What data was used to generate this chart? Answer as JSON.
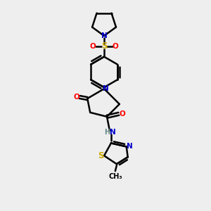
{
  "bg_color": "#eeeeee",
  "atom_colors": {
    "C": "#000000",
    "N": "#0000cc",
    "O": "#ff0000",
    "S": "#ccaa00",
    "H": "#668888"
  },
  "bond_color": "#000000",
  "bond_width": 1.8,
  "figsize": [
    3.0,
    3.0
  ],
  "dpi": 100
}
